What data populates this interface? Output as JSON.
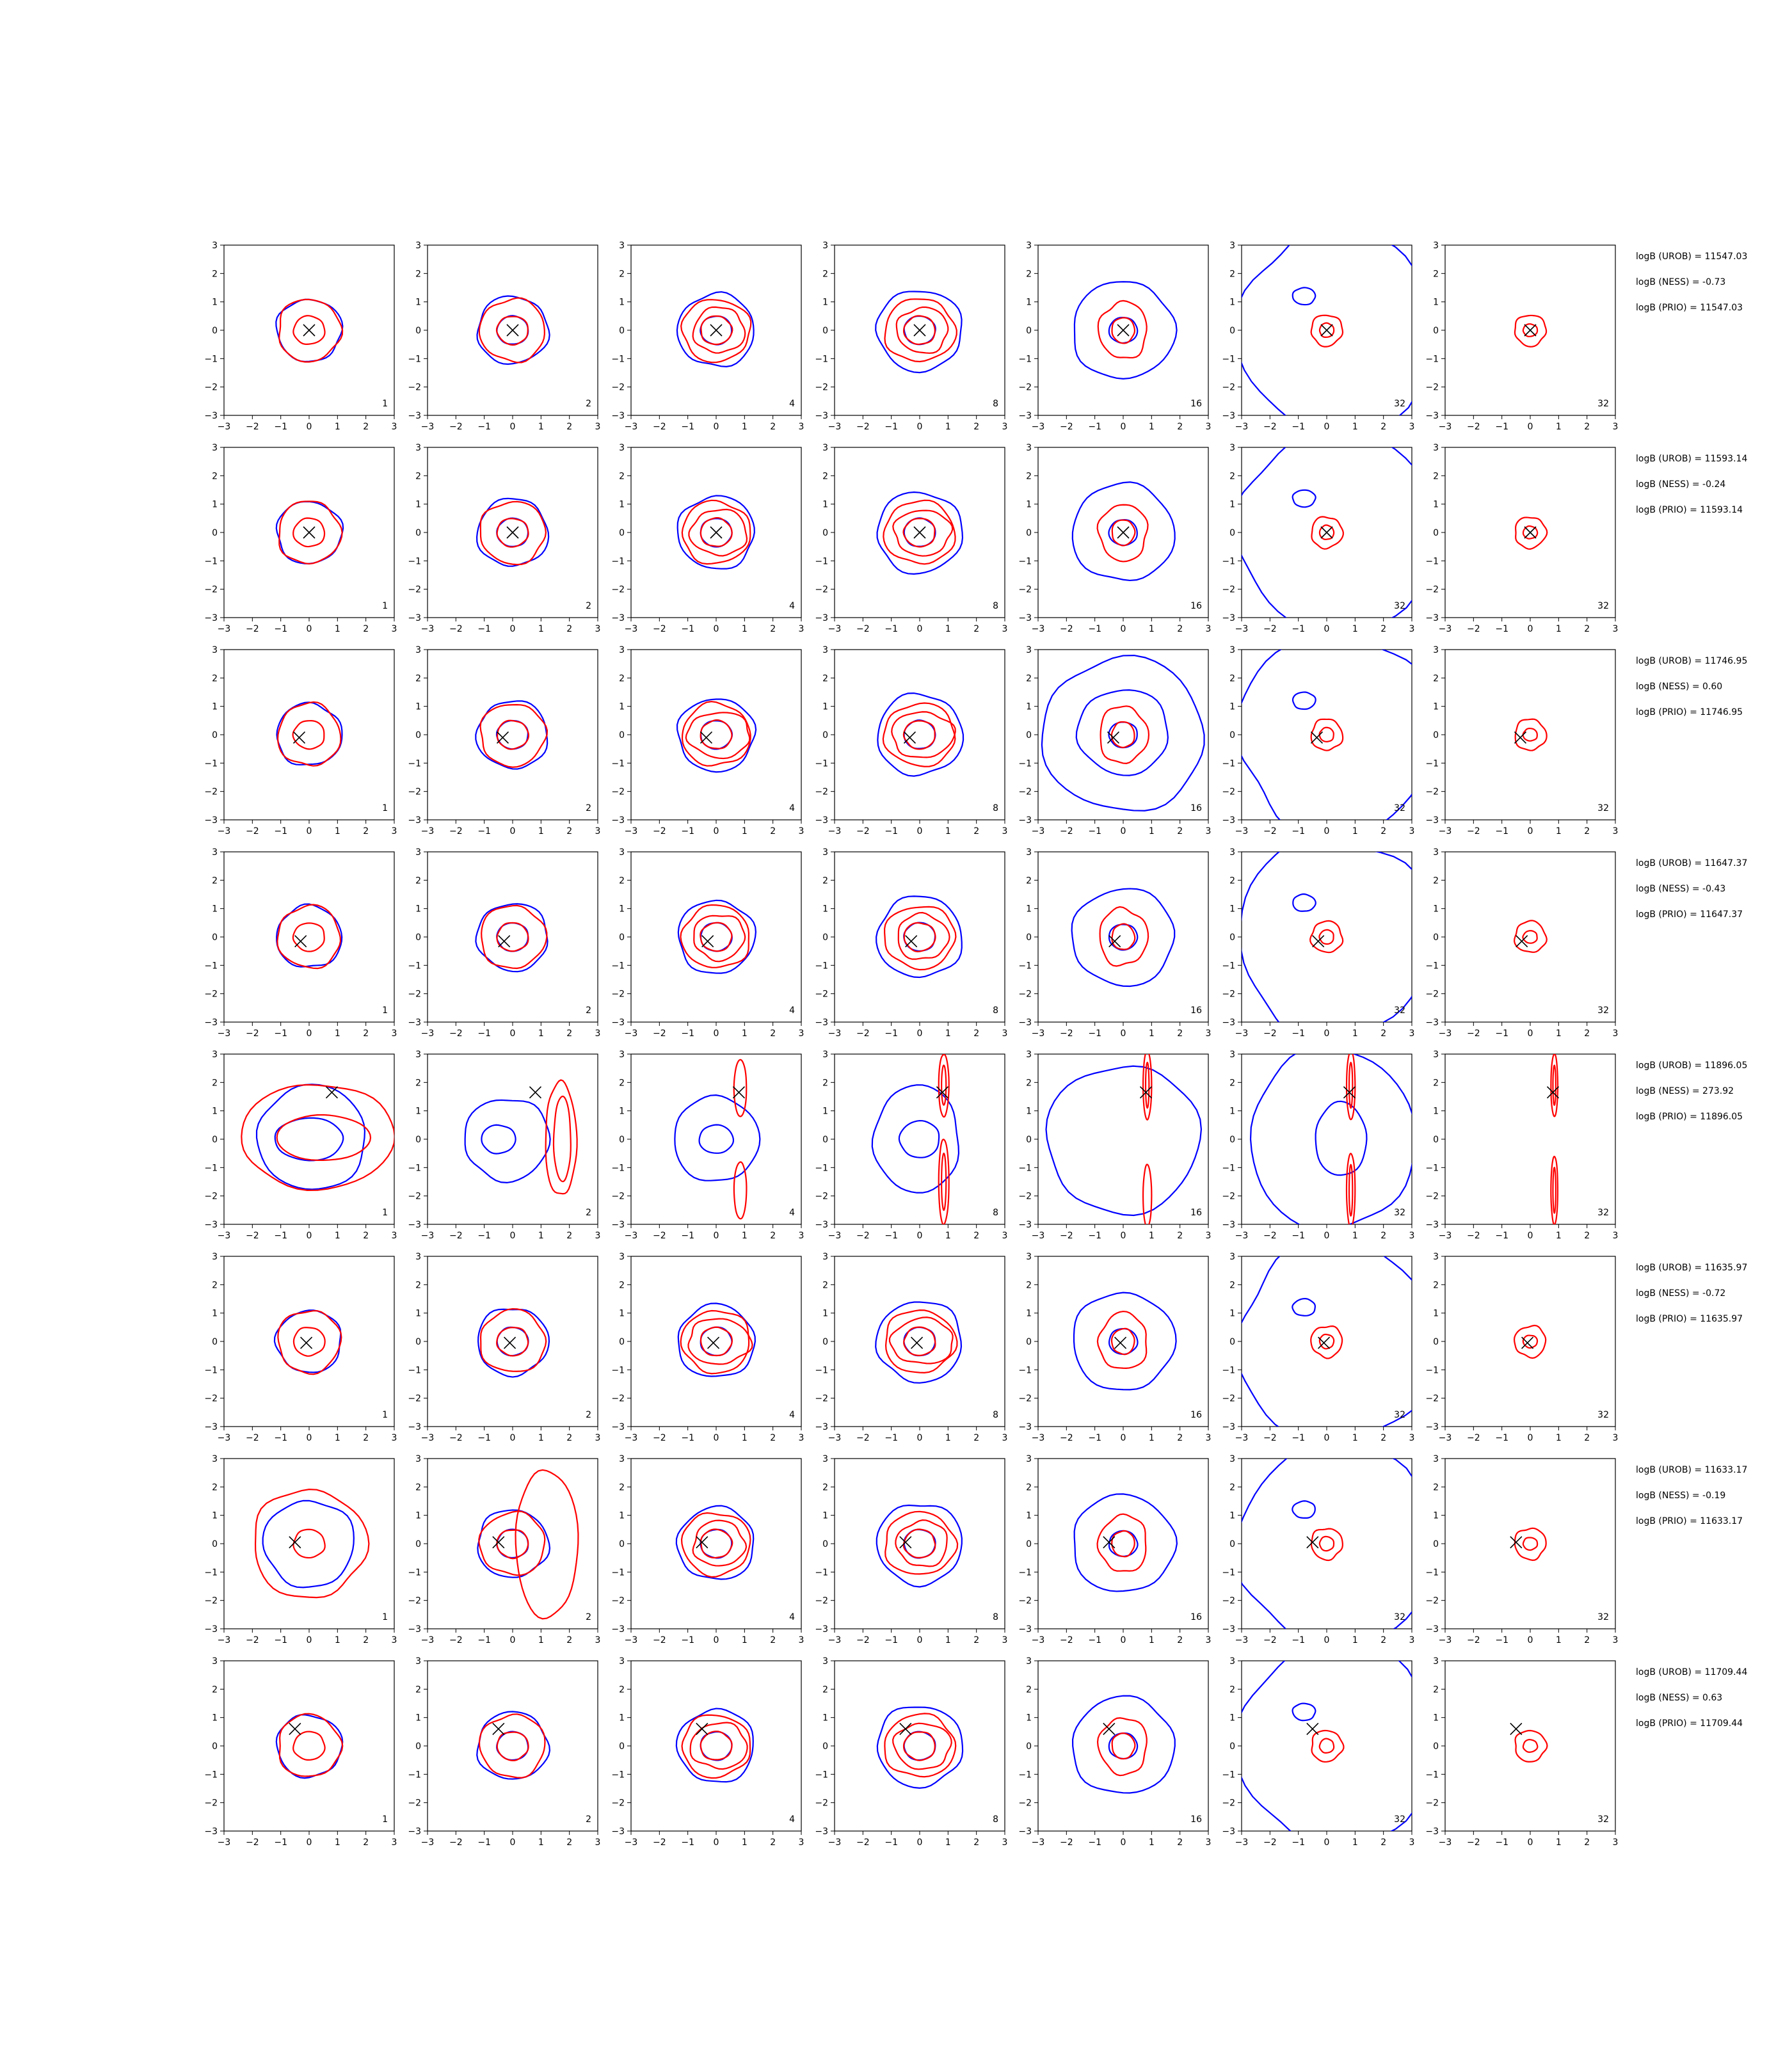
{
  "chart_data": {
    "type": "contour-grid",
    "rows": 8,
    "cols": 7,
    "xlim": [
      -3,
      3
    ],
    "ylim": [
      -3,
      3
    ],
    "xticks": [
      -3,
      -2,
      -1,
      0,
      1,
      2,
      3
    ],
    "yticks": [
      -3,
      -2,
      -1,
      0,
      1,
      2,
      3
    ],
    "tick_labels": [
      "−3",
      "−2",
      "−1",
      "0",
      "1",
      "2",
      "3"
    ],
    "column_labels": [
      "1",
      "2",
      "4",
      "8",
      "16",
      "32",
      "32"
    ],
    "colors": {
      "blue": "#0000ff",
      "red": "#ff0000",
      "marker": "#000000"
    },
    "row_stats": [
      {
        "urob": "logB (UROB) = 11547.03",
        "ness": "logB (NESS) = -0.73",
        "prio": "logB (PRIO) = 11547.03"
      },
      {
        "urob": "logB (UROB) = 11593.14",
        "ness": "logB (NESS) = -0.24",
        "prio": "logB (PRIO) = 11593.14"
      },
      {
        "urob": "logB (UROB) = 11746.95",
        "ness": "logB (NESS) = 0.60",
        "prio": "logB (PRIO) = 11746.95"
      },
      {
        "urob": "logB (UROB) = 11647.37",
        "ness": "logB (NESS) = -0.43",
        "prio": "logB (PRIO) = 11647.37"
      },
      {
        "urob": "logB (UROB) = 11896.05",
        "ness": "logB (NESS) = 273.92",
        "prio": "logB (PRIO) = 11896.05"
      },
      {
        "urob": "logB (UROB) = 11635.97",
        "ness": "logB (NESS) = -0.72",
        "prio": "logB (PRIO) = 11635.97"
      },
      {
        "urob": "logB (UROB) = 11633.17",
        "ness": "logB (NESS) = -0.19",
        "prio": "logB (PRIO) = 11633.17"
      },
      {
        "urob": "logB (UROB) = 11709.44",
        "ness": "logB (NESS) = 0.63",
        "prio": "logB (PRIO) = 11709.44"
      }
    ],
    "markers": [
      [
        0,
        0
      ],
      [
        0,
        0
      ],
      [
        -0.35,
        -0.1
      ],
      [
        -0.3,
        -0.15
      ],
      [
        0.8,
        1.65
      ],
      [
        -0.1,
        -0.05
      ],
      [
        -0.5,
        0.05
      ],
      [
        -0.5,
        0.6
      ]
    ]
  }
}
